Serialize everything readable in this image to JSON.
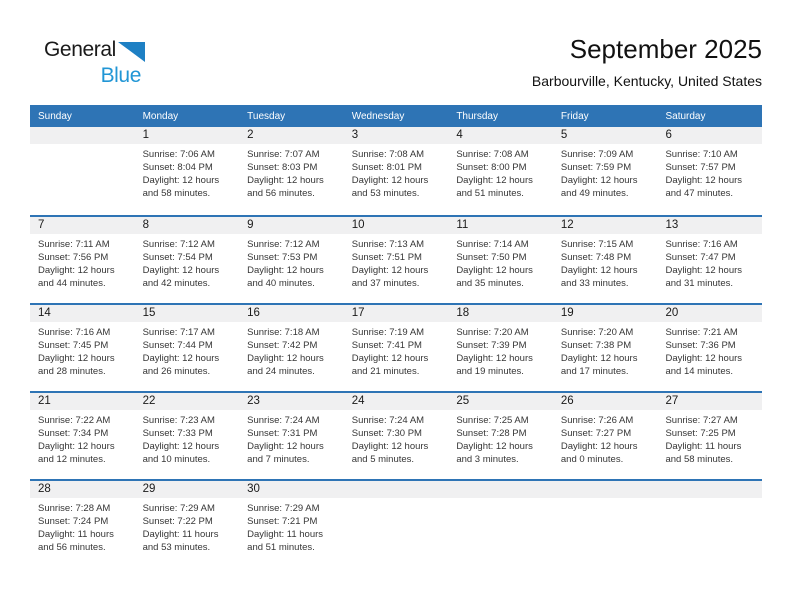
{
  "logo": {
    "general": "General",
    "blue": "Blue"
  },
  "page": {
    "title": "September 2025",
    "subtitle": "Barbourville, Kentucky, United States"
  },
  "weekdays": [
    "Sunday",
    "Monday",
    "Tuesday",
    "Wednesday",
    "Thursday",
    "Friday",
    "Saturday"
  ],
  "labels": {
    "sunrise": "Sunrise:",
    "sunset": "Sunset:",
    "daylight": "Daylight:"
  },
  "colors": {
    "header_blue": "#2E74B5",
    "row_line_blue": "#2E74B5",
    "band_gray": "#F0F0F1",
    "logo_blue": "#2196D5",
    "logo_triangle_blue": "#1E80C4"
  },
  "weeks": [
    [
      null,
      {
        "day": "1",
        "sunrise": "7:06 AM",
        "sunset": "8:04 PM",
        "daylight": "12 hours and 58 minutes."
      },
      {
        "day": "2",
        "sunrise": "7:07 AM",
        "sunset": "8:03 PM",
        "daylight": "12 hours and 56 minutes."
      },
      {
        "day": "3",
        "sunrise": "7:08 AM",
        "sunset": "8:01 PM",
        "daylight": "12 hours and 53 minutes."
      },
      {
        "day": "4",
        "sunrise": "7:08 AM",
        "sunset": "8:00 PM",
        "daylight": "12 hours and 51 minutes."
      },
      {
        "day": "5",
        "sunrise": "7:09 AM",
        "sunset": "7:59 PM",
        "daylight": "12 hours and 49 minutes."
      },
      {
        "day": "6",
        "sunrise": "7:10 AM",
        "sunset": "7:57 PM",
        "daylight": "12 hours and 47 minutes."
      }
    ],
    [
      {
        "day": "7",
        "sunrise": "7:11 AM",
        "sunset": "7:56 PM",
        "daylight": "12 hours and 44 minutes."
      },
      {
        "day": "8",
        "sunrise": "7:12 AM",
        "sunset": "7:54 PM",
        "daylight": "12 hours and 42 minutes."
      },
      {
        "day": "9",
        "sunrise": "7:12 AM",
        "sunset": "7:53 PM",
        "daylight": "12 hours and 40 minutes."
      },
      {
        "day": "10",
        "sunrise": "7:13 AM",
        "sunset": "7:51 PM",
        "daylight": "12 hours and 37 minutes."
      },
      {
        "day": "11",
        "sunrise": "7:14 AM",
        "sunset": "7:50 PM",
        "daylight": "12 hours and 35 minutes."
      },
      {
        "day": "12",
        "sunrise": "7:15 AM",
        "sunset": "7:48 PM",
        "daylight": "12 hours and 33 minutes."
      },
      {
        "day": "13",
        "sunrise": "7:16 AM",
        "sunset": "7:47 PM",
        "daylight": "12 hours and 31 minutes."
      }
    ],
    [
      {
        "day": "14",
        "sunrise": "7:16 AM",
        "sunset": "7:45 PM",
        "daylight": "12 hours and 28 minutes."
      },
      {
        "day": "15",
        "sunrise": "7:17 AM",
        "sunset": "7:44 PM",
        "daylight": "12 hours and 26 minutes."
      },
      {
        "day": "16",
        "sunrise": "7:18 AM",
        "sunset": "7:42 PM",
        "daylight": "12 hours and 24 minutes."
      },
      {
        "day": "17",
        "sunrise": "7:19 AM",
        "sunset": "7:41 PM",
        "daylight": "12 hours and 21 minutes."
      },
      {
        "day": "18",
        "sunrise": "7:20 AM",
        "sunset": "7:39 PM",
        "daylight": "12 hours and 19 minutes."
      },
      {
        "day": "19",
        "sunrise": "7:20 AM",
        "sunset": "7:38 PM",
        "daylight": "12 hours and 17 minutes."
      },
      {
        "day": "20",
        "sunrise": "7:21 AM",
        "sunset": "7:36 PM",
        "daylight": "12 hours and 14 minutes."
      }
    ],
    [
      {
        "day": "21",
        "sunrise": "7:22 AM",
        "sunset": "7:34 PM",
        "daylight": "12 hours and 12 minutes."
      },
      {
        "day": "22",
        "sunrise": "7:23 AM",
        "sunset": "7:33 PM",
        "daylight": "12 hours and 10 minutes."
      },
      {
        "day": "23",
        "sunrise": "7:24 AM",
        "sunset": "7:31 PM",
        "daylight": "12 hours and 7 minutes."
      },
      {
        "day": "24",
        "sunrise": "7:24 AM",
        "sunset": "7:30 PM",
        "daylight": "12 hours and 5 minutes."
      },
      {
        "day": "25",
        "sunrise": "7:25 AM",
        "sunset": "7:28 PM",
        "daylight": "12 hours and 3 minutes."
      },
      {
        "day": "26",
        "sunrise": "7:26 AM",
        "sunset": "7:27 PM",
        "daylight": "12 hours and 0 minutes."
      },
      {
        "day": "27",
        "sunrise": "7:27 AM",
        "sunset": "7:25 PM",
        "daylight": "11 hours and 58 minutes."
      }
    ],
    [
      {
        "day": "28",
        "sunrise": "7:28 AM",
        "sunset": "7:24 PM",
        "daylight": "11 hours and 56 minutes."
      },
      {
        "day": "29",
        "sunrise": "7:29 AM",
        "sunset": "7:22 PM",
        "daylight": "11 hours and 53 minutes."
      },
      {
        "day": "30",
        "sunrise": "7:29 AM",
        "sunset": "7:21 PM",
        "daylight": "11 hours and 51 minutes."
      },
      null,
      null,
      null,
      null
    ]
  ]
}
